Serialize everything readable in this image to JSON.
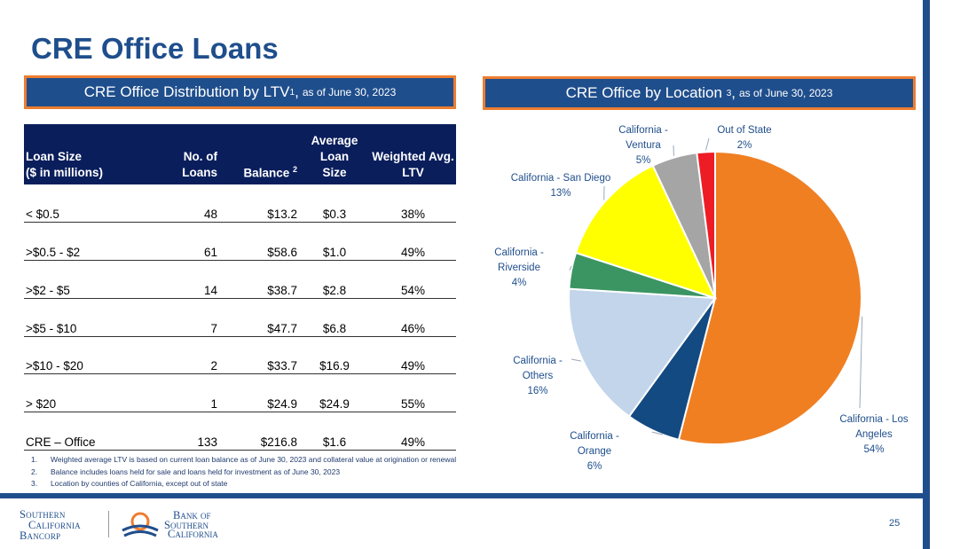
{
  "page": {
    "title": "CRE Office Loans",
    "page_number": "25"
  },
  "left_header": {
    "main": "CRE Office Distribution by LTV",
    "sup": "1",
    "suffix": ",",
    "small": "as of June 30, 2023"
  },
  "right_header": {
    "main": "CRE Office by Location ",
    "sup": "3",
    "suffix": ",",
    "small": "as of June 30, 2023"
  },
  "table": {
    "headers": {
      "loan_size_line1": "Loan Size",
      "loan_size_line2": "($ in millions)",
      "no_loans_line1": "No. of",
      "no_loans_line2": "Loans",
      "balance": "Balance",
      "balance_sup": "2",
      "avg_line1": "Average Loan",
      "avg_line2": "Size",
      "ltv_line1": "Weighted Avg.",
      "ltv_line2": "LTV"
    },
    "rows": [
      {
        "size": "< $0.5",
        "loans": "48",
        "balance": "$13.2",
        "avg": "$0.3",
        "ltv": "38%"
      },
      {
        "size": ">$0.5 - $2",
        "loans": "61",
        "balance": "$58.6",
        "avg": "$1.0",
        "ltv": "49%"
      },
      {
        "size": ">$2 - $5",
        "loans": "14",
        "balance": "$38.7",
        "avg": "$2.8",
        "ltv": "54%"
      },
      {
        "size": ">$5 - $10",
        "loans": "7",
        "balance": "$47.7",
        "avg": "$6.8",
        "ltv": "46%"
      },
      {
        "size": ">$10 - $20",
        "loans": "2",
        "balance": "$33.7",
        "avg": "$16.9",
        "ltv": "49%"
      },
      {
        "size": "> $20",
        "loans": "1",
        "balance": "$24.9",
        "avg": "$24.9",
        "ltv": "55%"
      },
      {
        "size": "CRE – Office",
        "loans": "133",
        "balance": "$216.8",
        "avg": "$1.6",
        "ltv": "49%"
      }
    ]
  },
  "footnotes": [
    {
      "num": "1.",
      "text": "Weighted average LTV is based on current loan balance as of June 30, 2023 and collateral value at origination or renewal"
    },
    {
      "num": "2.",
      "text": "Balance includes loans held for sale and loans held for investment as of June 30, 2023"
    },
    {
      "num": "3.",
      "text": "Location by counties of California, except out of state"
    }
  ],
  "chart_data": {
    "type": "pie",
    "title": "CRE Office by Location",
    "slices": [
      {
        "name": "California - Los Angeles",
        "label_lines": [
          "California - Los",
          "Angeles",
          "54%"
        ],
        "value": 54,
        "color": "#f07f22"
      },
      {
        "name": "California - Orange",
        "label_lines": [
          "California -",
          "Orange",
          "6%"
        ],
        "value": 6,
        "color": "#134a82"
      },
      {
        "name": "California - Others",
        "label_lines": [
          "California -",
          "Others",
          "16%"
        ],
        "value": 16,
        "color": "#c3d5ea"
      },
      {
        "name": "California - Riverside",
        "label_lines": [
          "California -",
          "Riverside",
          "4%"
        ],
        "value": 4,
        "color": "#3a9563"
      },
      {
        "name": "California - San Diego",
        "label_lines": [
          "California - San Diego",
          "13%"
        ],
        "value": 13,
        "color": "#ffff00"
      },
      {
        "name": "California - Ventura",
        "label_lines": [
          "California -",
          "Ventura",
          "5%"
        ],
        "value": 5,
        "color": "#a5a5a5"
      },
      {
        "name": "Out of State",
        "label_lines": [
          "Out of State",
          "2%"
        ],
        "value": 2,
        "color": "#ee1c24"
      }
    ]
  },
  "logos": {
    "sc_line1": "Southern",
    "sc_line2": "California",
    "sc_line3": "Bancorp",
    "boc_line1": "Bank of",
    "boc_line2": "Southern",
    "boc_line3": "California"
  }
}
